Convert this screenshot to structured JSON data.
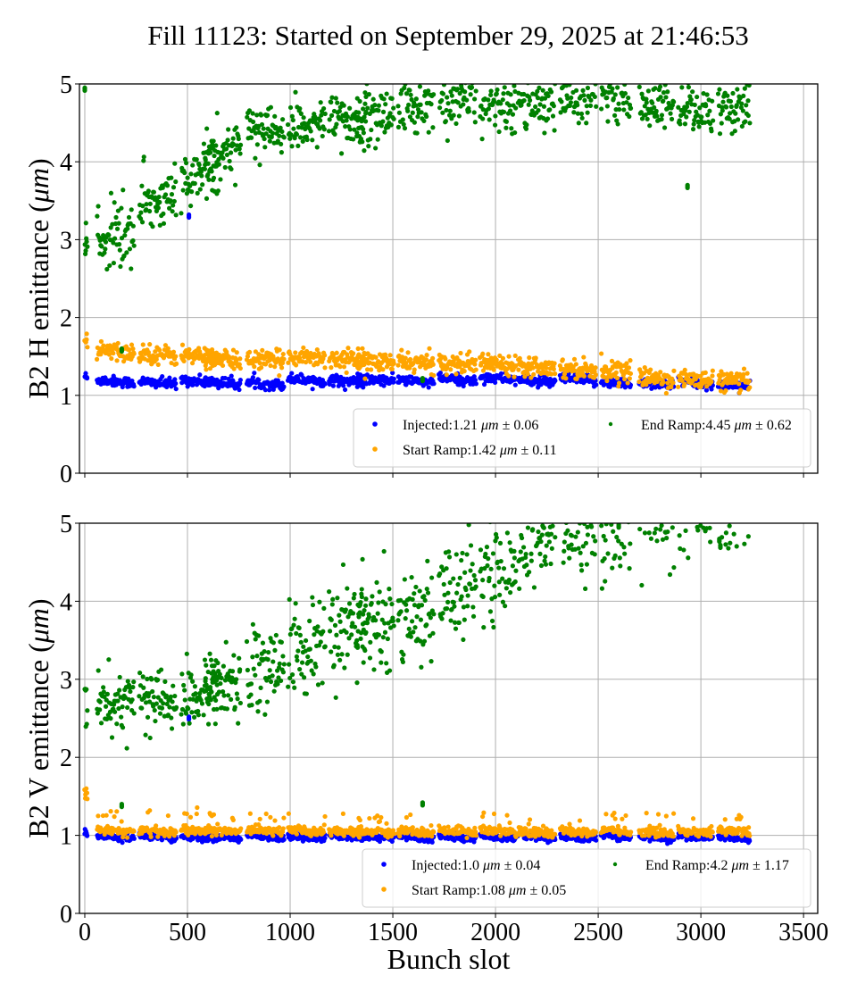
{
  "title": "Fill 11123: Started on September 29, 2025 at 21:46:53",
  "chart_data": [
    {
      "type": "scatter",
      "panel": "top",
      "title": "Fill 11123: Started on September 29, 2025 at 21:46:53",
      "xlabel": "",
      "ylabel": "B2 H emittance (μm)",
      "ylabel_parts": [
        "B2 H emittance (",
        "μm",
        ")"
      ],
      "xlim": [
        -26,
        3569
      ],
      "ylim": [
        0,
        5
      ],
      "xticks": [
        0,
        500,
        1000,
        1500,
        2000,
        2500,
        3000,
        3500
      ],
      "xtick_labels_visible": false,
      "yticks": [
        0,
        1,
        2,
        3,
        4,
        5
      ],
      "ytick_labels": [
        "0",
        "1",
        "2",
        "3",
        "4",
        "5"
      ],
      "grid": true,
      "legend_position": "lower-right",
      "legend": [
        {
          "name": "Injected",
          "label_pre": "Injected:1.21 ",
          "unit": "μm",
          "label_post": " ± 0.06",
          "color": "#0000ff"
        },
        {
          "name": "Start Ramp",
          "label_pre": "Start Ramp:1.42 ",
          "unit": "μm",
          "label_post": " ± 0.11",
          "color": "#ffa500"
        },
        {
          "name": "End Ramp",
          "label_pre": "End Ramp:4.45 ",
          "unit": "μm",
          "label_post": " ± 0.62",
          "color": "#008000"
        }
      ],
      "trains": [
        [
          0,
          12
        ],
        [
          60,
          240
        ],
        [
          265,
          445
        ],
        [
          470,
          650
        ],
        [
          585,
          760
        ],
        [
          790,
          970
        ],
        [
          990,
          1170
        ],
        [
          1190,
          1370
        ],
        [
          1325,
          1505
        ],
        [
          1525,
          1700
        ],
        [
          1725,
          1905
        ],
        [
          1925,
          2100
        ],
        [
          2110,
          2290
        ],
        [
          2315,
          2490
        ],
        [
          2515,
          2660
        ],
        [
          2700,
          2870
        ],
        [
          2890,
          3060
        ],
        [
          3085,
          3240
        ]
      ],
      "series": [
        {
          "name": "Injected",
          "color": "#0000ff",
          "mean": 1.21,
          "std": 0.06,
          "train_means": [
            1.25,
            1.2,
            1.18,
            1.2,
            1.18,
            1.17,
            1.22,
            1.2,
            1.22,
            1.2,
            1.22,
            1.24,
            1.2,
            1.22,
            1.18,
            1.17,
            1.18,
            1.15
          ],
          "outliers": [
            [
              507,
              3.32
            ]
          ]
        },
        {
          "name": "Start Ramp",
          "color": "#ffa500",
          "mean": 1.42,
          "std": 0.11,
          "train_means": [
            1.7,
            1.58,
            1.55,
            1.52,
            1.48,
            1.47,
            1.52,
            1.48,
            1.45,
            1.44,
            1.43,
            1.43,
            1.4,
            1.36,
            1.33,
            1.24,
            1.22,
            1.2
          ],
          "outliers": []
        },
        {
          "name": "End Ramp",
          "color": "#008000",
          "mean": 4.45,
          "std": 0.62,
          "train_means": [
            3.0,
            2.95,
            3.45,
            3.75,
            4.05,
            4.4,
            4.45,
            4.55,
            4.55,
            4.7,
            4.75,
            4.72,
            4.75,
            4.8,
            4.85,
            4.7,
            4.6,
            4.7
          ],
          "outliers": [
            [
              0,
              4.95
            ],
            [
              180,
              1.6
            ],
            [
              1645,
              1.22
            ],
            [
              2935,
              3.7
            ]
          ]
        }
      ]
    },
    {
      "type": "scatter",
      "panel": "bottom",
      "title": "",
      "xlabel": "Bunch slot",
      "ylabel": "B2 V emittance (μm)",
      "ylabel_parts": [
        "B2 V emittance (",
        "μm",
        ")"
      ],
      "xlim": [
        -26,
        3569
      ],
      "ylim": [
        0,
        5
      ],
      "xticks": [
        0,
        500,
        1000,
        1500,
        2000,
        2500,
        3000,
        3500
      ],
      "xtick_labels": [
        "0",
        "500",
        "1000",
        "1500",
        "2000",
        "2500",
        "3000",
        "3500"
      ],
      "yticks": [
        0,
        1,
        2,
        3,
        4,
        5
      ],
      "ytick_labels": [
        "0",
        "1",
        "2",
        "3",
        "4",
        "5"
      ],
      "grid": true,
      "legend_position": "lower-right",
      "legend": [
        {
          "name": "Injected",
          "label_pre": "Injected:1.0 ",
          "unit": "μm",
          "label_post": " ± 0.04",
          "color": "#0000ff"
        },
        {
          "name": "Start Ramp",
          "label_pre": "Start Ramp:1.08 ",
          "unit": "μm",
          "label_post": " ± 0.05",
          "color": "#ffa500"
        },
        {
          "name": "End Ramp",
          "label_pre": "End Ramp:4.2 ",
          "unit": "μm",
          "label_post": " ± 1.17",
          "color": "#008000"
        }
      ],
      "trains": [
        [
          0,
          12
        ],
        [
          60,
          240
        ],
        [
          265,
          445
        ],
        [
          470,
          650
        ],
        [
          585,
          760
        ],
        [
          790,
          970
        ],
        [
          990,
          1170
        ],
        [
          1190,
          1370
        ],
        [
          1325,
          1505
        ],
        [
          1525,
          1700
        ],
        [
          1725,
          1905
        ],
        [
          1925,
          2100
        ],
        [
          2110,
          2290
        ],
        [
          2315,
          2490
        ],
        [
          2515,
          2660
        ],
        [
          2700,
          2870
        ],
        [
          2890,
          3060
        ],
        [
          3085,
          3240
        ]
      ],
      "series": [
        {
          "name": "Injected",
          "color": "#0000ff",
          "mean": 1.0,
          "std": 0.04,
          "train_means": [
            1.05,
            1.0,
            1.0,
            0.99,
            1.0,
            1.0,
            1.0,
            1.0,
            0.99,
            0.99,
            1.0,
            1.0,
            1.0,
            0.99,
            1.0,
            0.99,
            0.99,
            0.98
          ],
          "outliers": [
            [
              507,
              2.52
            ]
          ]
        },
        {
          "name": "Start Ramp",
          "color": "#ffa500",
          "mean": 1.08,
          "std": 0.05,
          "train_means": [
            1.55,
            1.08,
            1.07,
            1.08,
            1.08,
            1.08,
            1.08,
            1.07,
            1.07,
            1.06,
            1.07,
            1.08,
            1.06,
            1.07,
            1.07,
            1.06,
            1.06,
            1.07
          ],
          "outliers": []
        },
        {
          "name": "End Ramp",
          "color": "#008000",
          "mean": 4.2,
          "std": 1.17,
          "train_means": [
            2.75,
            2.65,
            2.75,
            2.75,
            2.95,
            3.1,
            3.3,
            3.55,
            3.7,
            3.8,
            4.05,
            4.3,
            4.65,
            4.95,
            4.95,
            5.3,
            5.3,
            5.3
          ],
          "outliers": [
            [
              180,
              1.4
            ],
            [
              1645,
              1.42
            ],
            [
              2600,
              4.98
            ],
            [
              3090,
              4.8
            ],
            [
              3095,
              4.72
            ]
          ]
        }
      ]
    }
  ]
}
